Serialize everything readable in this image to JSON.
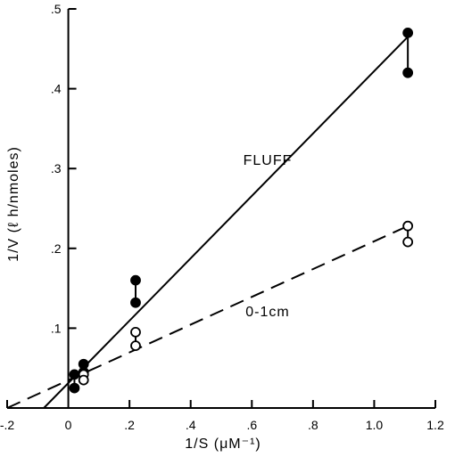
{
  "chart_data": {
    "type": "scatter",
    "title": "",
    "xlabel": "1/S (μM⁻¹)",
    "ylabel": "1/V (ℓ h/nmoles)",
    "xlim": [
      -0.2,
      1.2
    ],
    "ylim": [
      0,
      0.5
    ],
    "x_ticks": [
      -0.2,
      0.2,
      0.4,
      0.6,
      0.8,
      1.0,
      1.2
    ],
    "x_tick_labels": [
      "-.2",
      ".2",
      ".4",
      ".6",
      ".8",
      "1.0",
      "1.2"
    ],
    "x_zero_label": "0",
    "y_ticks": [
      0.1,
      0.2,
      0.3,
      0.4,
      0.5
    ],
    "y_tick_labels": [
      ".1",
      ".2",
      ".3",
      ".4",
      ".5"
    ],
    "grid": false,
    "series": [
      {
        "name": "FLUFF",
        "marker": "filled-circle",
        "line_style": "solid",
        "points": [
          {
            "x": 0.02,
            "y": 0.042
          },
          {
            "x": 0.02,
            "y": 0.025
          },
          {
            "x": 0.05,
            "y": 0.055
          },
          {
            "x": 0.05,
            "y": 0.045
          },
          {
            "x": 0.22,
            "y": 0.16
          },
          {
            "x": 0.22,
            "y": 0.132
          },
          {
            "x": 1.11,
            "y": 0.47
          },
          {
            "x": 1.11,
            "y": 0.42
          }
        ],
        "pairs": [
          [
            0,
            1
          ],
          [
            2,
            3
          ],
          [
            4,
            5
          ],
          [
            6,
            7
          ]
        ],
        "fit_line": {
          "x": [
            -0.08,
            1.11
          ],
          "y": [
            0.0,
            0.465
          ]
        }
      },
      {
        "name": "0-1cm",
        "marker": "open-circle",
        "line_style": "dashed",
        "points": [
          {
            "x": 0.05,
            "y": 0.042
          },
          {
            "x": 0.05,
            "y": 0.035
          },
          {
            "x": 0.22,
            "y": 0.095
          },
          {
            "x": 0.22,
            "y": 0.078
          },
          {
            "x": 1.11,
            "y": 0.228
          },
          {
            "x": 1.11,
            "y": 0.208
          }
        ],
        "pairs": [
          [
            0,
            1
          ],
          [
            2,
            3
          ],
          [
            4,
            5
          ]
        ],
        "fit_line": {
          "x": [
            -0.2,
            1.11
          ],
          "y": [
            0.0,
            0.228
          ]
        }
      }
    ]
  }
}
